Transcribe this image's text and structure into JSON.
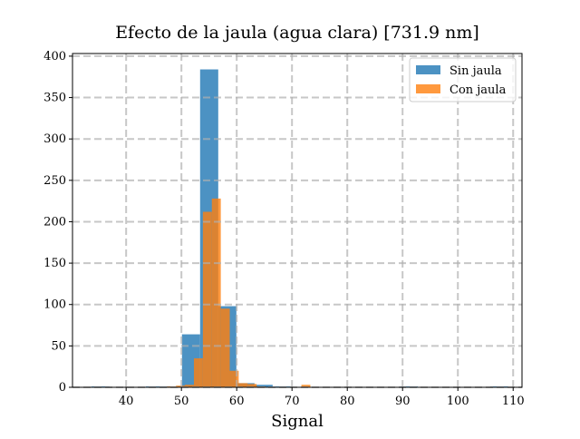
{
  "chart_data": {
    "type": "histogram",
    "title": "Efecto de la jaula (agua clara) [731.9 nm]",
    "x_label": "Signal",
    "series": [
      {
        "name": "Sin jaula",
        "color": "#1f77b4",
        "bins": [
          33.7,
          36.98,
          40.26,
          43.54,
          46.82,
          50.1,
          53.38,
          56.66,
          59.94,
          63.22,
          66.5,
          69.78,
          73.06,
          76.34,
          79.62,
          82.9,
          86.18,
          89.46,
          92.74,
          96.02,
          99.3,
          102.58,
          105.86,
          109.14
        ],
        "values": [
          1,
          0,
          0,
          1,
          1,
          64,
          384,
          98,
          5,
          3,
          1,
          0,
          0,
          0,
          0,
          0,
          0,
          1,
          0,
          0,
          0,
          0,
          1
        ]
      },
      {
        "name": "Con jaula",
        "color": "#ff7f0e",
        "bins": [
          47.4,
          49.02,
          50.64,
          52.26,
          53.88,
          55.5,
          57.12,
          58.74,
          60.36,
          61.98,
          63.6,
          65.22,
          66.84,
          68.46,
          70.08,
          71.7,
          73.32
        ],
        "values": [
          1,
          2,
          3,
          35,
          212,
          228,
          95,
          20,
          5,
          4,
          1,
          0,
          0,
          0,
          0,
          3
        ]
      }
    ],
    "xlim": [
      30.3,
      111.6
    ],
    "xticks": [
      40,
      50,
      60,
      70,
      80,
      90,
      100,
      110
    ],
    "ylim": [
      0,
      403.2
    ],
    "yticks": [
      0,
      50,
      100,
      150,
      200,
      250,
      300,
      350,
      400
    ],
    "grid": true,
    "legend": "upper right"
  }
}
